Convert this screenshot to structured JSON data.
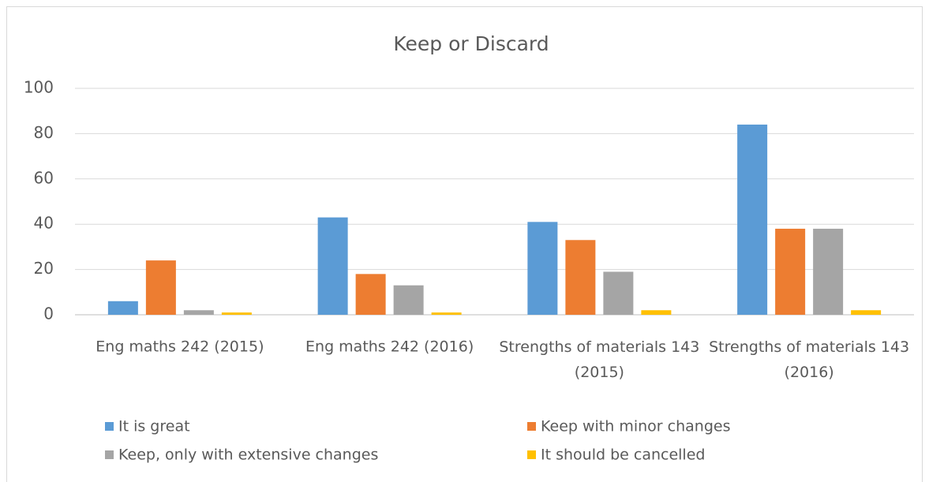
{
  "chart_data": {
    "type": "bar",
    "title": "Keep or Discard",
    "categories": [
      "Eng maths 242 (2015)",
      "Eng maths 242 (2016)",
      "Strengths of materials 143 (2015)",
      "Strengths of materials 143 (2016)"
    ],
    "series": [
      {
        "name": "It is great",
        "color": "#5b9bd5",
        "values": [
          6,
          43,
          41,
          84
        ]
      },
      {
        "name": "Keep with minor changes",
        "color": "#ed7d31",
        "values": [
          24,
          18,
          33,
          38
        ]
      },
      {
        "name": "Keep, only with extensive changes",
        "color": "#a5a5a5",
        "values": [
          2,
          13,
          19,
          38
        ]
      },
      {
        "name": "It should be cancelled",
        "color": "#ffc000",
        "values": [
          1,
          1,
          2,
          2
        ]
      }
    ],
    "ylim": [
      0,
      100
    ],
    "yticks": [
      0,
      20,
      40,
      60,
      80,
      100
    ],
    "grid": true,
    "legend": "bottom"
  }
}
